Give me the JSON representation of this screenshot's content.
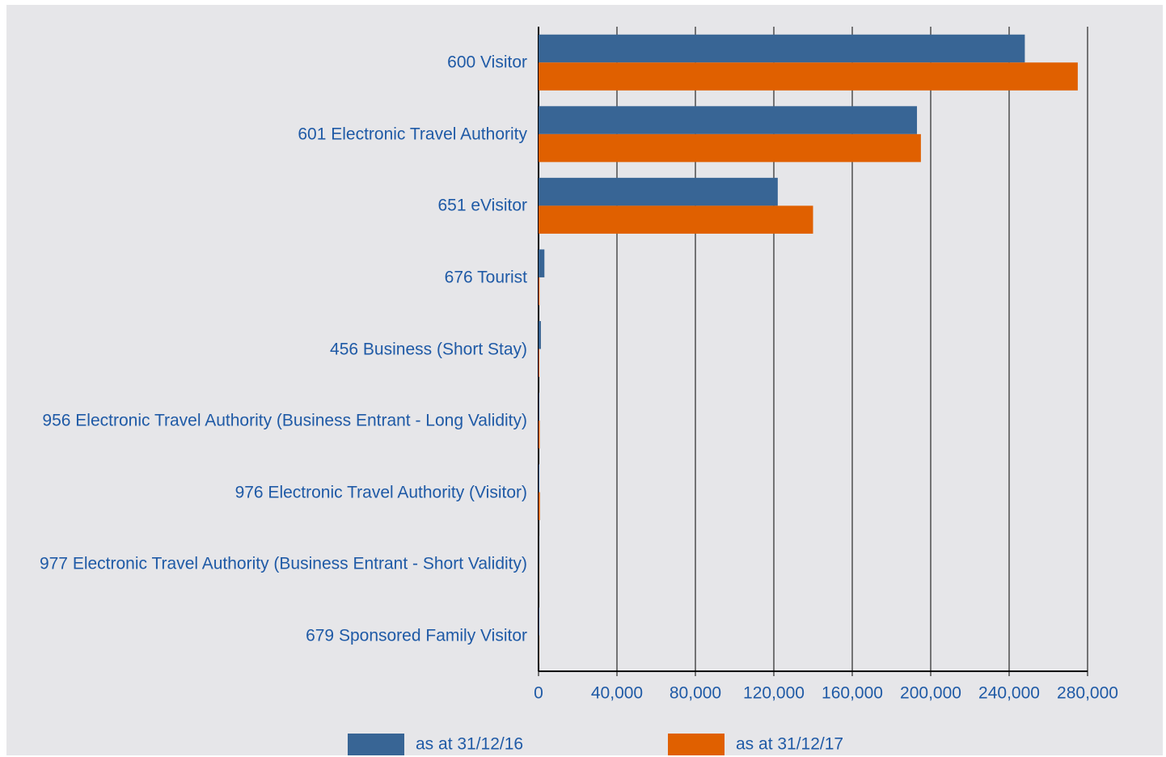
{
  "chart_data": {
    "type": "hbar",
    "categories": [
      "600 Visitor",
      "601 Electronic Travel Authority",
      "651 eVisitor",
      "676 Tourist",
      "456 Business (Short Stay)",
      "956 Electronic Travel Authority (Business Entrant - Long Validity)",
      "976 Electronic Travel Authority (Visitor)",
      "977 Electronic Travel Authority (Business Entrant - Short Validity)",
      "679 Sponsored Family Visitor"
    ],
    "series": [
      {
        "name": "as at 31/12/16",
        "color": "#386595",
        "values": [
          248000,
          193000,
          122000,
          3000,
          1200,
          300,
          400,
          100,
          300
        ]
      },
      {
        "name": "as at 31/12/17",
        "color": "#e06000",
        "values": [
          275000,
          195000,
          140000,
          500,
          400,
          600,
          700,
          100,
          100
        ]
      }
    ],
    "xlim": [
      0,
      280000
    ],
    "xticks": [
      0,
      {
        "value": 40000,
        "label": "40,000"
      },
      {
        "value": 80000,
        "label": "80,000"
      },
      {
        "value": 120000,
        "label": "120,000"
      },
      {
        "value": 160000,
        "label": "160,000"
      },
      {
        "value": 200000,
        "label": "200,000"
      },
      {
        "value": 240000,
        "label": "240,000"
      },
      {
        "value": 280000,
        "label": "280,000"
      }
    ],
    "grid": true
  }
}
